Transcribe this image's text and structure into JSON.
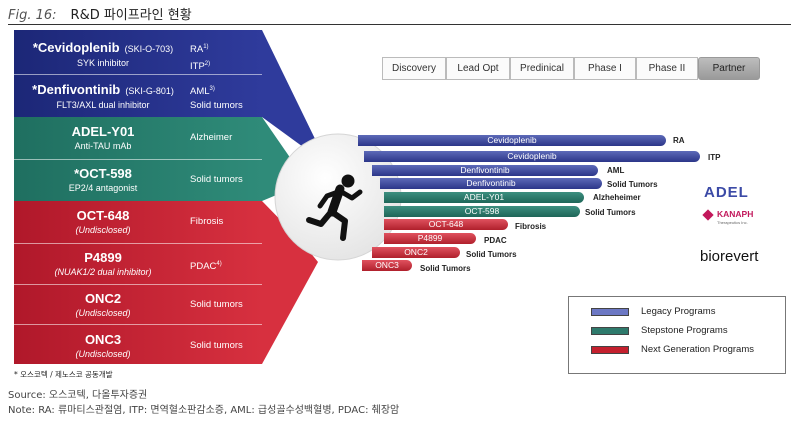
{
  "header": {
    "fig_label": "Fig. 16:",
    "title": "R&D 파이프라인 현황"
  },
  "stages": [
    "Discovery",
    "Lead Opt",
    "Predinical",
    "Phase I",
    "Phase II",
    "Partner"
  ],
  "drugs": [
    {
      "name": "*Cevidoplenib",
      "code": "(SKI-O-703)",
      "desc": "SYK inhibitor",
      "ind1": "RA",
      "sup1": "1)",
      "ind2": "ITP",
      "sup2": "2)"
    },
    {
      "name": "*Denfivontinib",
      "code": "(SKI-G-801)",
      "desc": "FLT3/AXL dual inhibitor",
      "ind1": "AML",
      "sup1": "3)",
      "ind2": "Solid tumors",
      "sup2": ""
    },
    {
      "name": "ADEL-Y01",
      "code": "",
      "desc": "Anti-TAU mAb",
      "ind1": "Alzheimer",
      "sup1": "",
      "ind2": "",
      "sup2": ""
    },
    {
      "name": "*OCT-598",
      "code": "",
      "desc": "EP2/4 antagonist",
      "ind1": "Solid tumors",
      "sup1": "",
      "ind2": "",
      "sup2": ""
    },
    {
      "name": "OCT-648",
      "code": "",
      "desc": "(Undisclosed)",
      "ind1": "Fibrosis",
      "sup1": "",
      "ind2": "",
      "sup2": ""
    },
    {
      "name": "P4899",
      "code": "",
      "desc": "(NUAK1/2 dual inhibitor)",
      "ind1": "PDAC",
      "sup1": "4)",
      "ind2": "",
      "sup2": ""
    },
    {
      "name": "ONC2",
      "code": "",
      "desc": "(Undisclosed)",
      "ind1": "Solid tumors",
      "sup1": "",
      "ind2": "",
      "sup2": ""
    },
    {
      "name": "ONC3",
      "code": "",
      "desc": "(Undisclosed)",
      "ind1": "Solid tumors",
      "sup1": "",
      "ind2": "",
      "sup2": ""
    }
  ],
  "bars": [
    {
      "label": "Cevidoplenib",
      "indication": "RA",
      "program": "legacy"
    },
    {
      "label": "Cevidoplenib",
      "indication": "ITP",
      "program": "legacy"
    },
    {
      "label": "Denfivontinib",
      "indication": "AML",
      "program": "legacy"
    },
    {
      "label": "Denfivontinib",
      "indication": "Solid Tumors",
      "program": "legacy"
    },
    {
      "label": "ADEL-Y01",
      "indication": "Alzheheimer",
      "program": "step"
    },
    {
      "label": "OCT-598",
      "indication": "Solid Tumors",
      "program": "step"
    },
    {
      "label": "OCT-648",
      "indication": "Fibrosis",
      "program": "next"
    },
    {
      "label": "P4899",
      "indication": "PDAC",
      "program": "next"
    },
    {
      "label": "ONC2",
      "indication": "Solid Tumors",
      "program": "next"
    },
    {
      "label": "ONC3",
      "indication": "Solid Tumors",
      "program": "next"
    }
  ],
  "partners": {
    "adel": "ADEL",
    "kanaph": "KANAPH",
    "kanaph_sub": "Therapeutics Inc.",
    "biorevert": "biorevert"
  },
  "legend": [
    {
      "label": "Legacy Programs",
      "color": "#5d6ab8"
    },
    {
      "label": "Stepstone Programs",
      "color": "#2e7a6c"
    },
    {
      "label": "Next Generation Programs",
      "color": "#c4202e"
    }
  ],
  "colors": {
    "legacy": "#2c3689",
    "stepstone": "#1e6658",
    "next_gen": "#c4202e"
  },
  "icons": {
    "center": "running-person-icon"
  },
  "footnote": "* 오스코텍 / 제노스코 공동개발",
  "source": "Source: 오스코텍, 다올투자증권",
  "note": "Note: RA: 류마티스관절염, ITP: 면역혈소판감소증, AML: 급성골수성백혈병, PDAC: 췌장암"
}
